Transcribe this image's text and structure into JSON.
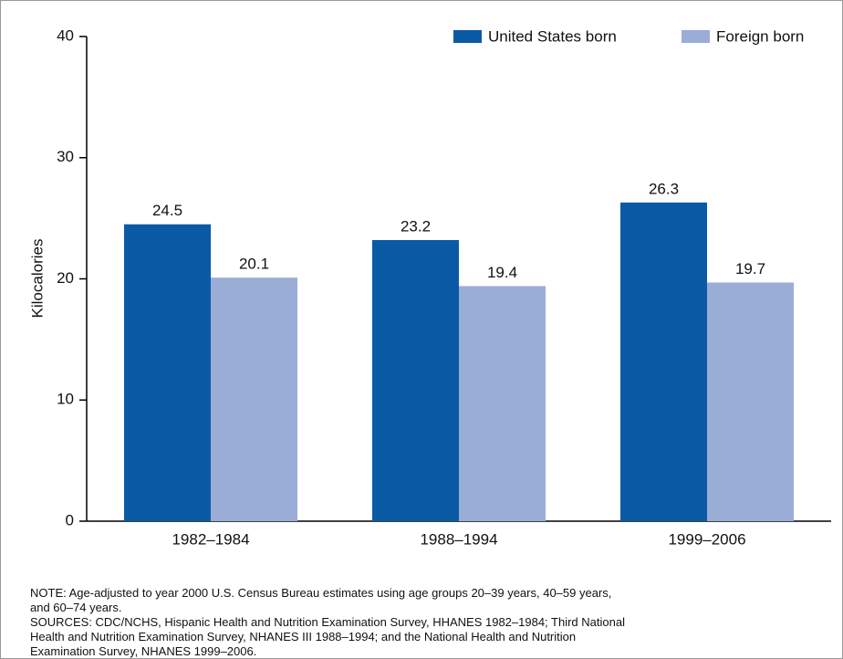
{
  "chart_data": {
    "type": "bar",
    "y_label": "Kilocalories",
    "categories": [
      "1982–1984",
      "1988–1994",
      "1999–2006"
    ],
    "series": [
      {
        "name": "United States born",
        "color": "#0b5aa6",
        "values": [
          24.5,
          23.2,
          26.3
        ]
      },
      {
        "name": "Foreign born",
        "color": "#9aadd7",
        "values": [
          20.1,
          19.4,
          19.7
        ]
      }
    ],
    "ylim": [
      0,
      40
    ],
    "yticks": [
      0,
      10,
      20,
      30,
      40
    ],
    "grid": false,
    "legend": "top-right",
    "note": [
      "NOTE: Age-adjusted to year 2000 U.S. Census Bureau estimates using age groups 20–39 years, 40–59 years,",
      "and 60–74 years."
    ],
    "sources": [
      "SOURCES: CDC/NCHS, Hispanic Health and Nutrition Examination Survey, HHANES 1982–1984; Third National",
      "Health and Nutrition Examination Survey, NHANES III 1988–1994; and the National Health and Nutrition",
      "Examination Survey, NHANES 1999–2006."
    ]
  }
}
